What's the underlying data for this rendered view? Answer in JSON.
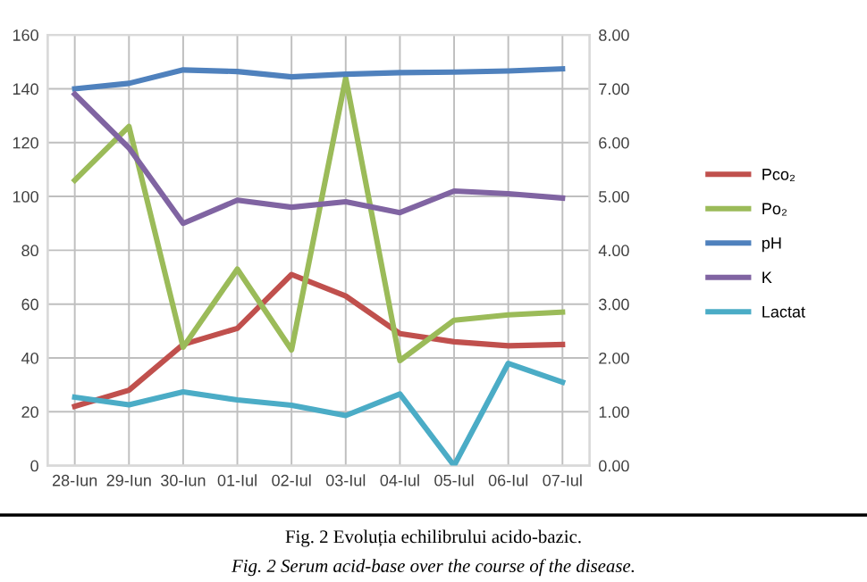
{
  "chart_data": {
    "type": "line",
    "categories": [
      "28-Iun",
      "29-Iun",
      "30-Iun",
      "01-Iul",
      "02-Iul",
      "03-Iul",
      "04-Iul",
      "05-Iul",
      "06-Iul",
      "07-Iul"
    ],
    "series": [
      {
        "name": "Pco₂",
        "color": "#c0504d",
        "values": [
          22,
          28,
          45,
          51,
          71,
          63,
          49,
          46,
          44.5,
          45
        ]
      },
      {
        "name": "Po₂",
        "color": "#9bbb59",
        "values": [
          106,
          126,
          44,
          73,
          43,
          144,
          39,
          54,
          56,
          57
        ]
      },
      {
        "name": "pH",
        "color": "#4f81bd",
        "axis": "y2",
        "values": [
          7.0,
          7.1,
          7.35,
          7.32,
          7.22,
          7.27,
          7.3,
          7.31,
          7.33,
          7.37
        ]
      },
      {
        "name": "K",
        "color": "#8064a2",
        "axis": "y2",
        "values": [
          6.9,
          5.9,
          4.5,
          4.93,
          4.8,
          4.9,
          4.7,
          5.1,
          5.05,
          4.97
        ]
      },
      {
        "name": "Lactat",
        "color": "#4bacc6",
        "axis": "y2",
        "values": [
          1.27,
          1.13,
          1.37,
          1.22,
          1.12,
          0.93,
          1.33,
          0,
          1.9,
          1.55
        ]
      }
    ],
    "ylim": [
      0,
      160
    ],
    "yticks": [
      0,
      20,
      40,
      60,
      80,
      100,
      120,
      140,
      160
    ],
    "y2lim": [
      0,
      8
    ],
    "y2ticks": [
      {
        "value": 0,
        "label": "0.00"
      },
      {
        "value": 1,
        "label": "1.00"
      },
      {
        "value": 2,
        "label": "2.00"
      },
      {
        "value": 3,
        "label": "3.00"
      },
      {
        "value": 4,
        "label": "4.00"
      },
      {
        "value": 5,
        "label": "5.00"
      },
      {
        "value": 6,
        "label": "6.00"
      },
      {
        "value": 7,
        "label": "7.00"
      },
      {
        "value": 8,
        "label": "8.00"
      }
    ],
    "grid": true,
    "legend": "right",
    "marker": "none",
    "line_style": "solid",
    "annotations": [
      "Fig. 2 Evoluția echilibrului acido-bazic.",
      "Fig. 2 Serum acid-base over the course of the disease."
    ]
  }
}
